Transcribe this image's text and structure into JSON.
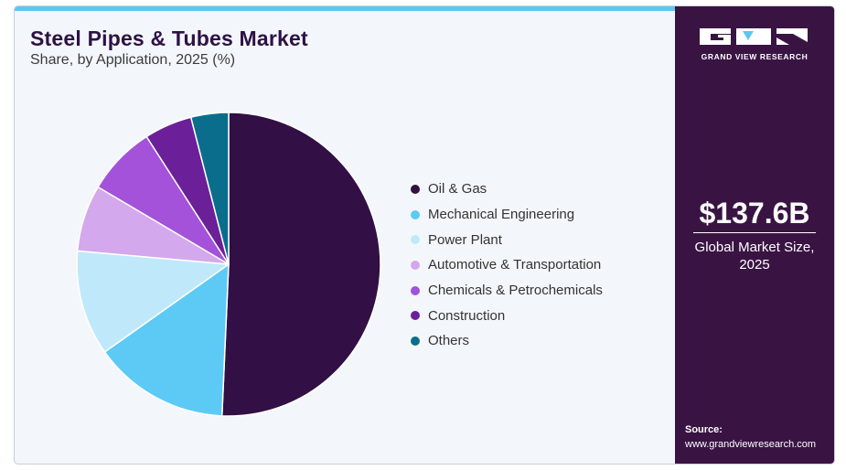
{
  "header": {
    "title": "Steel Pipes & Tubes Market",
    "subtitle": "Share, by Application, 2025 (%)"
  },
  "sidebar": {
    "logo_text": "GRAND VIEW RESEARCH",
    "market_size": "$137.6B",
    "market_size_label_line1": "Global Market Size,",
    "market_size_label_line2": "2025",
    "source_label": "Source:",
    "source_url": "www.grandviewresearch.com"
  },
  "colors": {
    "accent_bar": "#5ec7f0",
    "sidebar_bg": "#391443",
    "card_bg": "#f3f7fb"
  },
  "chart_data": {
    "type": "pie",
    "title": "Steel Pipes & Tubes Market",
    "subtitle": "Share, by Application, 2025 (%)",
    "legend_position": "right",
    "start": "top",
    "direction": "clockwise",
    "slices": [
      {
        "label": "Oil & Gas",
        "value": 50.7,
        "color": "#320f44"
      },
      {
        "label": "Mechanical Engineering",
        "value": 14.5,
        "color": "#5ccaf5"
      },
      {
        "label": "Power Plant",
        "value": 11.2,
        "color": "#bfe9fa"
      },
      {
        "label": "Automotive & Transportation",
        "value": 7.1,
        "color": "#d4a8ec"
      },
      {
        "label": "Chemicals & Petrochemicals",
        "value": 7.4,
        "color": "#a352d9"
      },
      {
        "label": "Construction",
        "value": 5.1,
        "color": "#6b1f98"
      },
      {
        "label": "Others",
        "value": 4.0,
        "color": "#0b6d8c"
      }
    ]
  }
}
